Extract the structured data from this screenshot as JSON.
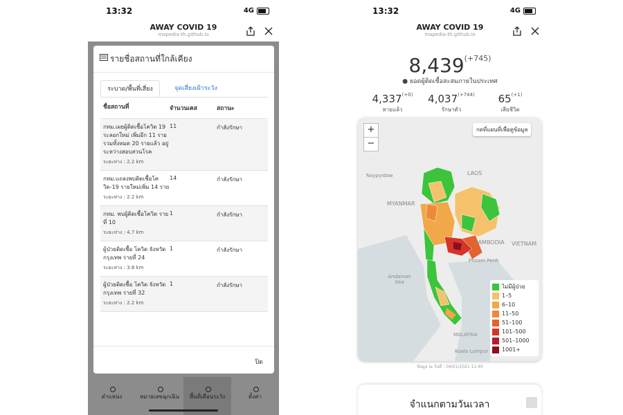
{
  "left_screen": {
    "status": {
      "time": "13:32",
      "network": "4G"
    },
    "header": {
      "title": "AWAY COVID 19",
      "url": "mapedia-th.github.io"
    },
    "modal": {
      "title": "รายชื่อสถานที่ใกล้เคียง",
      "tabs": [
        "ระบาด/พื้นที่เสี่ยง",
        "จุดเสี่ยงเฝ้าระวัง"
      ],
      "columns": [
        "ชื่อสถานที่",
        "จำนวนเคส",
        "สถานะ"
      ],
      "rows": [
        {
          "name": "กทม.เผยผู้ติดเชื้อโควิด 19 ระลอกใหม่ เพิ่มอีก 11 ราย รวมทั้งหมด 20 รายแล้ว อยู่ระหว่างสอบสวนโรค",
          "cases": "11",
          "status": "กำลังรักษา",
          "distance": "ระยะห่าง : 2.2 km"
        },
        {
          "name": "กทม.แถลงพบติดเชื้อโควิด-19 รายใหม่เพิ่ม 14 ราย",
          "cases": "14",
          "status": "กำลังรักษา",
          "distance": "ระยะห่าง : 2.2 km"
        },
        {
          "name": "กทม. พบผู้ติดเชื้อโควิด รายที่ 10",
          "cases": "1",
          "status": "กำลังรักษา",
          "distance": "ระยะห่าง : 4.7 km"
        },
        {
          "name": "ผู้ป่วยติดเชื้อ โควิด จังหวัดกรุงเทพ รายที่ 24",
          "cases": "1",
          "status": "กำลังรักษา",
          "distance": "ระยะห่าง : 3.8 km"
        },
        {
          "name": "ผู้ป่วยติดเชื้อ โควิด จังหวัดกรุงเทพ รายที่ 32",
          "cases": "1",
          "status": "กำลังรักษา",
          "distance": "ระยะห่าง : 2.2 km"
        }
      ],
      "close": "ปิด"
    },
    "nav": [
      "ตำแหน่ง",
      "หมายเลขฉุกเฉิน",
      "พื้นที่เตือนระวัง",
      "ตั้งค่า"
    ]
  },
  "right_screen": {
    "status": {
      "time": "13:32",
      "network": "4G"
    },
    "header": {
      "title": "AWAY COVID 19",
      "url": "mapedia-th.github.io"
    },
    "total": {
      "value": "8,439",
      "change": "(+745)",
      "label": "ยอดผู้ติดเชื้อสะสมภายในประเทศ"
    },
    "stats": [
      {
        "value": "4,337",
        "change": "(+0)",
        "label": "หายแล้ว"
      },
      {
        "value": "4,037",
        "change": "(+744)",
        "label": "รักษาตัว"
      },
      {
        "value": "65",
        "change": "(+1)",
        "label": "เสียชีวิต"
      }
    ],
    "map": {
      "zoom_in": "+",
      "zoom_out": "−",
      "hint": "กดที่แผนที่เพื่อดูข้อมูล",
      "labels": [
        "LAOS",
        "MYANMAR",
        "CAMBODIA",
        "VIETNAM",
        "Andaman Sea",
        "MALAYSIA",
        "Naypyidaw",
        "Phnom Penh",
        "Kuala Lumpur"
      ],
      "legend": [
        {
          "label": "ไม่มีผู้ป่วย",
          "color": "#3cc43c"
        },
        {
          "label": "1–5",
          "color": "#f5c26b"
        },
        {
          "label": "6–10",
          "color": "#f0a848"
        },
        {
          "label": "11–50",
          "color": "#ec8a3a"
        },
        {
          "label": "51–100",
          "color": "#e4622e"
        },
        {
          "label": "101–500",
          "color": "#d6342a"
        },
        {
          "label": "501–1000",
          "color": "#b81a2a"
        },
        {
          "label": "1001+",
          "color": "#8a0f22"
        }
      ]
    },
    "updated": "ข้อมูล ณ วันที่ : 04/01/2021 11:40",
    "section_title": "จำแนกตามวันเวลา"
  }
}
